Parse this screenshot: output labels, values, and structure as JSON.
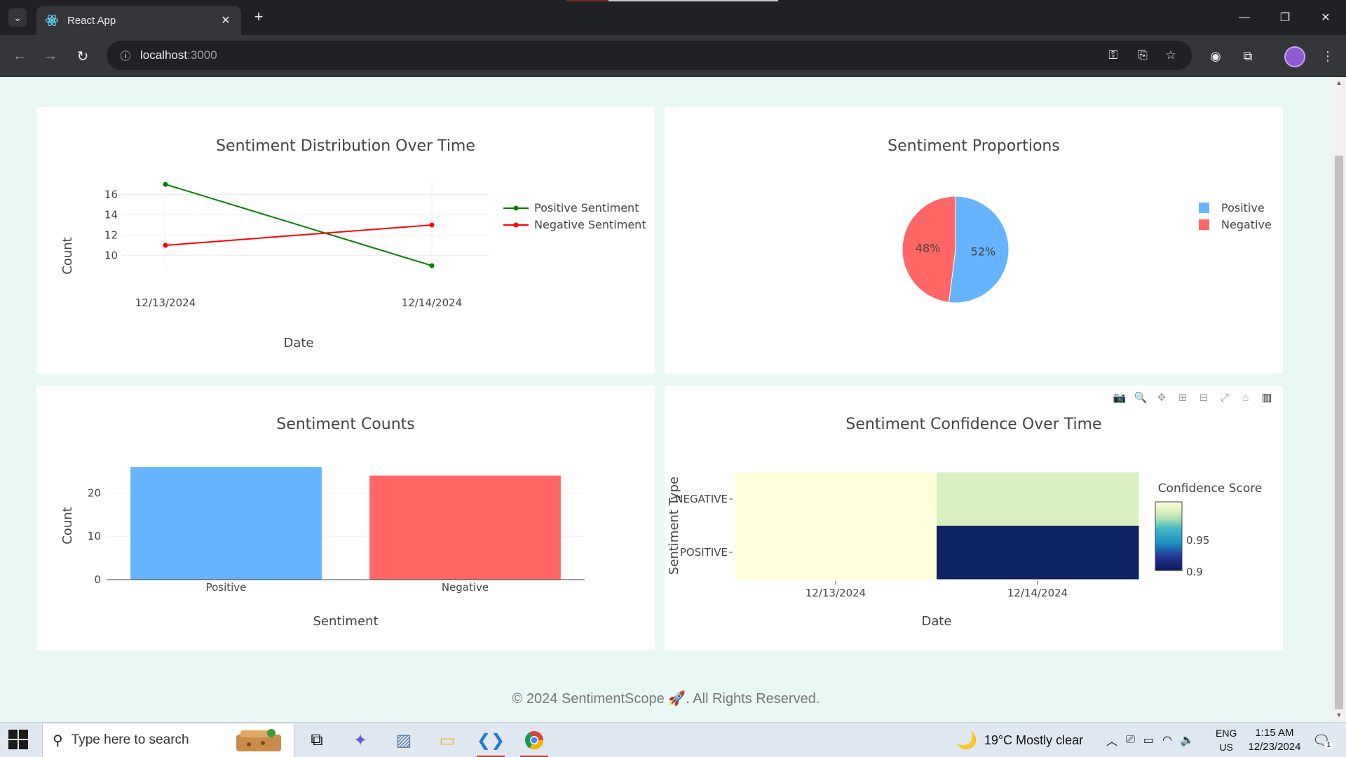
{
  "browser": {
    "tab_title": "React App",
    "url_host": "localhost",
    "url_port": ":3000"
  },
  "charts": {
    "line": {
      "title": "Sentiment Distribution Over Time",
      "xlabel": "Date",
      "ylabel": "Count",
      "x": [
        "12/13/2024",
        "12/14/2024"
      ],
      "yticks": [
        10,
        12,
        14,
        16
      ],
      "ylim": [
        9,
        17
      ],
      "series": [
        {
          "name": "Positive Sentiment",
          "color": "#008000",
          "values": [
            17,
            9
          ]
        },
        {
          "name": "Negative Sentiment",
          "color": "#ff0000",
          "values": [
            11,
            13
          ]
        }
      ]
    },
    "pie": {
      "title": "Sentiment Proportions",
      "labels": [
        "Positive",
        "Negative"
      ],
      "values": [
        52,
        48
      ],
      "texts": [
        "52%",
        "48%"
      ],
      "colors": [
        "#66b3ff",
        "#ff6666"
      ]
    },
    "bar": {
      "title": "Sentiment Counts",
      "xlabel": "Sentiment",
      "ylabel": "Count",
      "categories": [
        "Positive",
        "Negative"
      ],
      "values": [
        26,
        24
      ],
      "yticks": [
        0,
        10,
        20
      ],
      "ylim": [
        0,
        27
      ],
      "colors": [
        "#66b3ff",
        "#ff6666"
      ]
    },
    "heatmap": {
      "title": "Sentiment Confidence Over Time",
      "xlabel": "Date",
      "ylabel": "Sentiment Type",
      "x": [
        "12/13/2024",
        "12/14/2024"
      ],
      "y": [
        "NEGATIVE",
        "POSITIVE"
      ],
      "z": [
        [
          0.99,
          0.975
        ],
        [
          0.99,
          0.885
        ]
      ],
      "colorbar_title": "Confidence Score",
      "colorbar_ticks": [
        "0.95",
        "0.9"
      ],
      "colorscale": "YlGnBu"
    }
  },
  "footer": {
    "text": "© 2024 SentimentScope 🚀. All Rights Reserved."
  },
  "taskbar": {
    "search_placeholder": "Type here to search",
    "weather": "19°C  Mostly clear",
    "lang": "ENG",
    "region": "US",
    "time": "1:15 AM",
    "date": "12/23/2024",
    "notification_count": "1"
  }
}
